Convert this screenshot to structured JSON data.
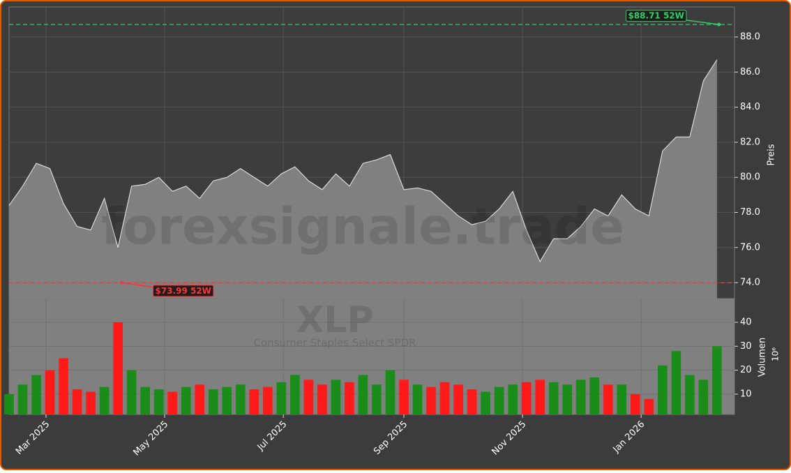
{
  "chart_data": {
    "type": "price-volume",
    "watermark": "forexsignale.trade",
    "symbol": "XLP",
    "subtitle": "Consumer Staples Select SPDR",
    "y_label": "Preis",
    "y2_label": "Volumen",
    "y2_unit": "10⁶",
    "x": [
      "2025-02-10",
      "2025-02-17",
      "2025-02-24",
      "2025-03-03",
      "2025-03-10",
      "2025-03-17",
      "2025-03-24",
      "2025-03-31",
      "2025-04-07",
      "2025-04-14",
      "2025-04-21",
      "2025-04-28",
      "2025-05-05",
      "2025-05-12",
      "2025-05-19",
      "2025-05-26",
      "2025-06-02",
      "2025-06-09",
      "2025-06-16",
      "2025-06-23",
      "2025-06-30",
      "2025-07-07",
      "2025-07-14",
      "2025-07-21",
      "2025-07-28",
      "2025-08-04",
      "2025-08-11",
      "2025-08-18",
      "2025-08-25",
      "2025-09-01",
      "2025-09-08",
      "2025-09-15",
      "2025-09-22",
      "2025-09-29",
      "2025-10-06",
      "2025-10-13",
      "2025-10-20",
      "2025-10-27",
      "2025-11-03",
      "2025-11-10",
      "2025-11-17",
      "2025-11-24",
      "2025-12-01",
      "2025-12-08",
      "2025-12-15",
      "2025-12-22",
      "2025-12-29",
      "2026-01-05",
      "2026-01-12",
      "2026-01-19",
      "2026-01-26",
      "2026-02-02",
      "2026-02-09"
    ],
    "series": [
      {
        "name": "Preis",
        "color": "#d9d9d9",
        "fill": "#808080",
        "values": [
          78.4,
          79.5,
          80.8,
          80.5,
          78.5,
          77.2,
          77.0,
          78.8,
          76.0,
          79.5,
          79.6,
          80.0,
          79.2,
          79.5,
          78.8,
          79.8,
          80.0,
          80.5,
          80.0,
          79.5,
          80.2,
          80.6,
          79.8,
          79.3,
          80.2,
          79.5,
          80.8,
          81.0,
          81.3,
          79.3,
          79.4,
          79.2,
          78.5,
          77.8,
          77.3,
          77.5,
          78.2,
          79.2,
          77.0,
          75.2,
          76.5,
          76.5,
          77.2,
          78.2,
          77.8,
          79.0,
          78.2,
          77.8,
          81.5,
          82.3,
          82.3,
          85.5,
          86.7
        ]
      },
      {
        "name": "Volumen",
        "axis": "y2",
        "up_color": "#1a8c1a",
        "down_color": "#ff1a1a",
        "values": [
          10,
          14,
          18,
          20,
          25,
          12,
          11,
          13,
          40,
          20,
          13,
          12,
          11,
          13,
          14,
          12,
          13,
          14,
          12,
          13,
          15,
          18,
          16,
          14,
          16,
          15,
          18,
          14,
          20,
          16,
          14,
          13,
          15,
          14,
          12,
          11,
          13,
          14,
          15,
          16,
          15,
          14,
          16,
          17,
          14,
          14,
          10,
          8,
          22,
          28,
          18,
          16,
          30
        ]
      }
    ],
    "xlim": [
      "2025-02-10",
      "2026-02-18"
    ],
    "xticks": [
      {
        "value": "2025-03-01",
        "label": "Mar 2025"
      },
      {
        "value": "2025-05-01",
        "label": "May 2025"
      },
      {
        "value": "2025-07-01",
        "label": "Jul 2025"
      },
      {
        "value": "2025-09-01",
        "label": "Sep 2025"
      },
      {
        "value": "2025-11-01",
        "label": "Nov 2025"
      },
      {
        "value": "2026-01-01",
        "label": "Jan 2026"
      }
    ],
    "ylim": [
      73.09,
      89.71
    ],
    "yticks": [
      {
        "value": 74,
        "label": "74.0"
      },
      {
        "value": 76,
        "label": "76.0"
      },
      {
        "value": 78,
        "label": "78.0"
      },
      {
        "value": 80,
        "label": "80.0"
      },
      {
        "value": 82,
        "label": "82.0"
      },
      {
        "value": 84,
        "label": "84.0"
      },
      {
        "value": 86,
        "label": "86.0"
      },
      {
        "value": 88,
        "label": "88.0"
      }
    ],
    "y2lim": [
      1.54,
      49.9
    ],
    "y2ticks": [
      10,
      20,
      30,
      40
    ],
    "grid": true,
    "high_52w": {
      "x": "2026-02-10",
      "value": 88.71,
      "label": "$88.71 52W",
      "color": "#33cc66"
    },
    "low_52w": {
      "x": "2025-04-09",
      "value": 73.99,
      "label": "$73.99 52W",
      "color": "#ff3333"
    }
  }
}
